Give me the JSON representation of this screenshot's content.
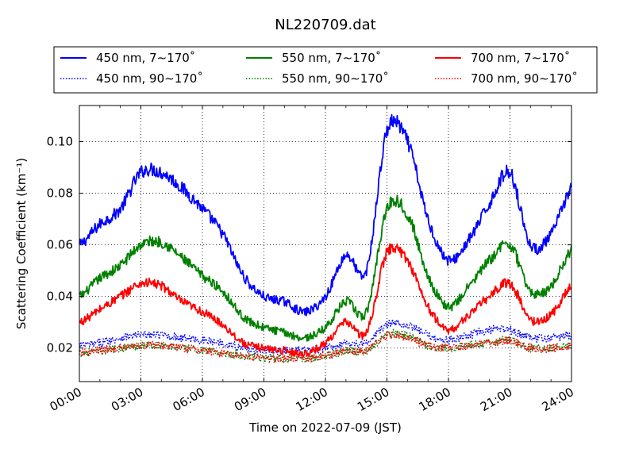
{
  "chart_data": {
    "type": "line",
    "title": "NL220709.dat",
    "xlabel": "Time on 2022-07-09 (JST)",
    "ylabel": "Scattering Coefficient (km⁻¹)",
    "x_unit": "hours",
    "xlim": [
      0,
      24
    ],
    "ylim": [
      0.007,
      0.114
    ],
    "x_ticks": [
      0,
      3,
      6,
      9,
      12,
      15,
      18,
      21,
      24
    ],
    "x_tick_labels": [
      "00:00",
      "03:00",
      "06:00",
      "09:00",
      "12:00",
      "15:00",
      "18:00",
      "21:00",
      "24:00"
    ],
    "y_ticks": [
      0.02,
      0.04,
      0.06,
      0.08,
      0.1
    ],
    "y_tick_labels": [
      "0.02",
      "0.04",
      "0.06",
      "0.08",
      "0.10"
    ],
    "grid": true,
    "legend_position": "top",
    "x": [
      0,
      1,
      2,
      3,
      4,
      5,
      6,
      7,
      8,
      9,
      10,
      11,
      12,
      13,
      14,
      15,
      16,
      17,
      18,
      19,
      20,
      21,
      22,
      23,
      24
    ],
    "series": [
      {
        "name": "450 nm, 7∼170˚",
        "color": "#0000ff",
        "style": "solid",
        "values": [
          0.06,
          0.068,
          0.074,
          0.088,
          0.088,
          0.082,
          0.074,
          0.064,
          0.048,
          0.04,
          0.038,
          0.034,
          0.04,
          0.056,
          0.05,
          0.104,
          0.1,
          0.07,
          0.054,
          0.062,
          0.076,
          0.088,
          0.06,
          0.064,
          0.082
        ]
      },
      {
        "name": "550 nm, 7∼170˚",
        "color": "#008000",
        "style": "solid",
        "values": [
          0.04,
          0.047,
          0.052,
          0.06,
          0.061,
          0.055,
          0.048,
          0.042,
          0.032,
          0.028,
          0.026,
          0.024,
          0.028,
          0.038,
          0.034,
          0.074,
          0.072,
          0.048,
          0.036,
          0.044,
          0.054,
          0.06,
          0.042,
          0.044,
          0.058
        ]
      },
      {
        "name": "700 nm, 7∼170˚",
        "color": "#ff0000",
        "style": "solid",
        "values": [
          0.03,
          0.035,
          0.04,
          0.045,
          0.044,
          0.038,
          0.034,
          0.029,
          0.022,
          0.02,
          0.019,
          0.018,
          0.022,
          0.03,
          0.026,
          0.057,
          0.054,
          0.036,
          0.027,
          0.033,
          0.04,
          0.045,
          0.031,
          0.033,
          0.044
        ]
      },
      {
        "name": "450 nm, 90∼170˚",
        "color": "#0000ff",
        "style": "dotted",
        "values": [
          0.021,
          0.022,
          0.024,
          0.025,
          0.025,
          0.024,
          0.023,
          0.022,
          0.02,
          0.019,
          0.019,
          0.019,
          0.02,
          0.022,
          0.022,
          0.029,
          0.029,
          0.025,
          0.023,
          0.025,
          0.027,
          0.027,
          0.024,
          0.024,
          0.025
        ]
      },
      {
        "name": "550 nm, 90∼170˚",
        "color": "#008000",
        "style": "dotted",
        "values": [
          0.018,
          0.019,
          0.02,
          0.021,
          0.021,
          0.02,
          0.019,
          0.018,
          0.017,
          0.016,
          0.016,
          0.016,
          0.017,
          0.019,
          0.019,
          0.025,
          0.025,
          0.021,
          0.02,
          0.021,
          0.022,
          0.023,
          0.02,
          0.02,
          0.021
        ]
      },
      {
        "name": "700 nm, 90∼170˚",
        "color": "#ff0000",
        "style": "dotted",
        "values": [
          0.018,
          0.019,
          0.02,
          0.021,
          0.021,
          0.02,
          0.019,
          0.018,
          0.017,
          0.016,
          0.016,
          0.016,
          0.017,
          0.019,
          0.019,
          0.025,
          0.024,
          0.021,
          0.02,
          0.021,
          0.022,
          0.023,
          0.02,
          0.02,
          0.021
        ]
      }
    ]
  }
}
